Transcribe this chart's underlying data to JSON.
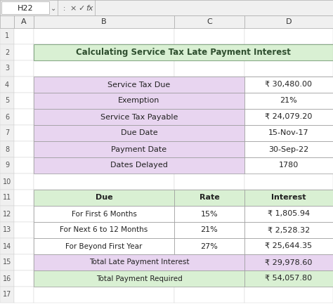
{
  "title": "Calculating Service Tax Late Payment Interest",
  "title_bg": "#d9f0d3",
  "title_color": "#2f4f2f",
  "formula_bar_text": "H22",
  "col_headers": [
    "A",
    "B",
    "C",
    "D"
  ],
  "top_table": {
    "rows": [
      {
        "label": "Service Tax Due",
        "value": "₹ 30,480.00"
      },
      {
        "label": "Exemption",
        "value": "21%"
      },
      {
        "label": "Service Tax Payable",
        "value": "₹ 24,079.20"
      },
      {
        "label": "Due Date",
        "value": "15-Nov-17"
      },
      {
        "label": "Payment Date",
        "value": "30-Sep-22"
      },
      {
        "label": "Dates Delayed",
        "value": "1780"
      }
    ],
    "label_bg": "#e8d5f0",
    "value_bg": "#ffffff",
    "border_color": "#999999"
  },
  "bottom_table": {
    "headers": [
      "Due",
      "Rate",
      "Interest"
    ],
    "header_bg": "#d9f0d3",
    "rows": [
      {
        "due": "For First 6 Months",
        "rate": "15%",
        "interest": "₹ 1,805.94",
        "bg": "#ffffff"
      },
      {
        "due": "For Next 6 to 12 Months",
        "rate": "21%",
        "interest": "₹ 2,528.32",
        "bg": "#ffffff"
      },
      {
        "due": "For Beyond First Year",
        "rate": "27%",
        "interest": "₹ 25,644.35",
        "bg": "#ffffff"
      },
      {
        "due": "Total Late Payment Interest",
        "rate": "",
        "interest": "₹ 29,978.60",
        "bg": "#e8d5f0"
      },
      {
        "due": "Total Payment Required",
        "rate": "",
        "interest": "₹ 54,057.80",
        "bg": "#d9f0d3"
      }
    ],
    "border_color": "#999999"
  },
  "excel_bg": "#ffffff",
  "toolbar_bg": "#f0f0f0",
  "grid_line_color": "#d0d0d0"
}
